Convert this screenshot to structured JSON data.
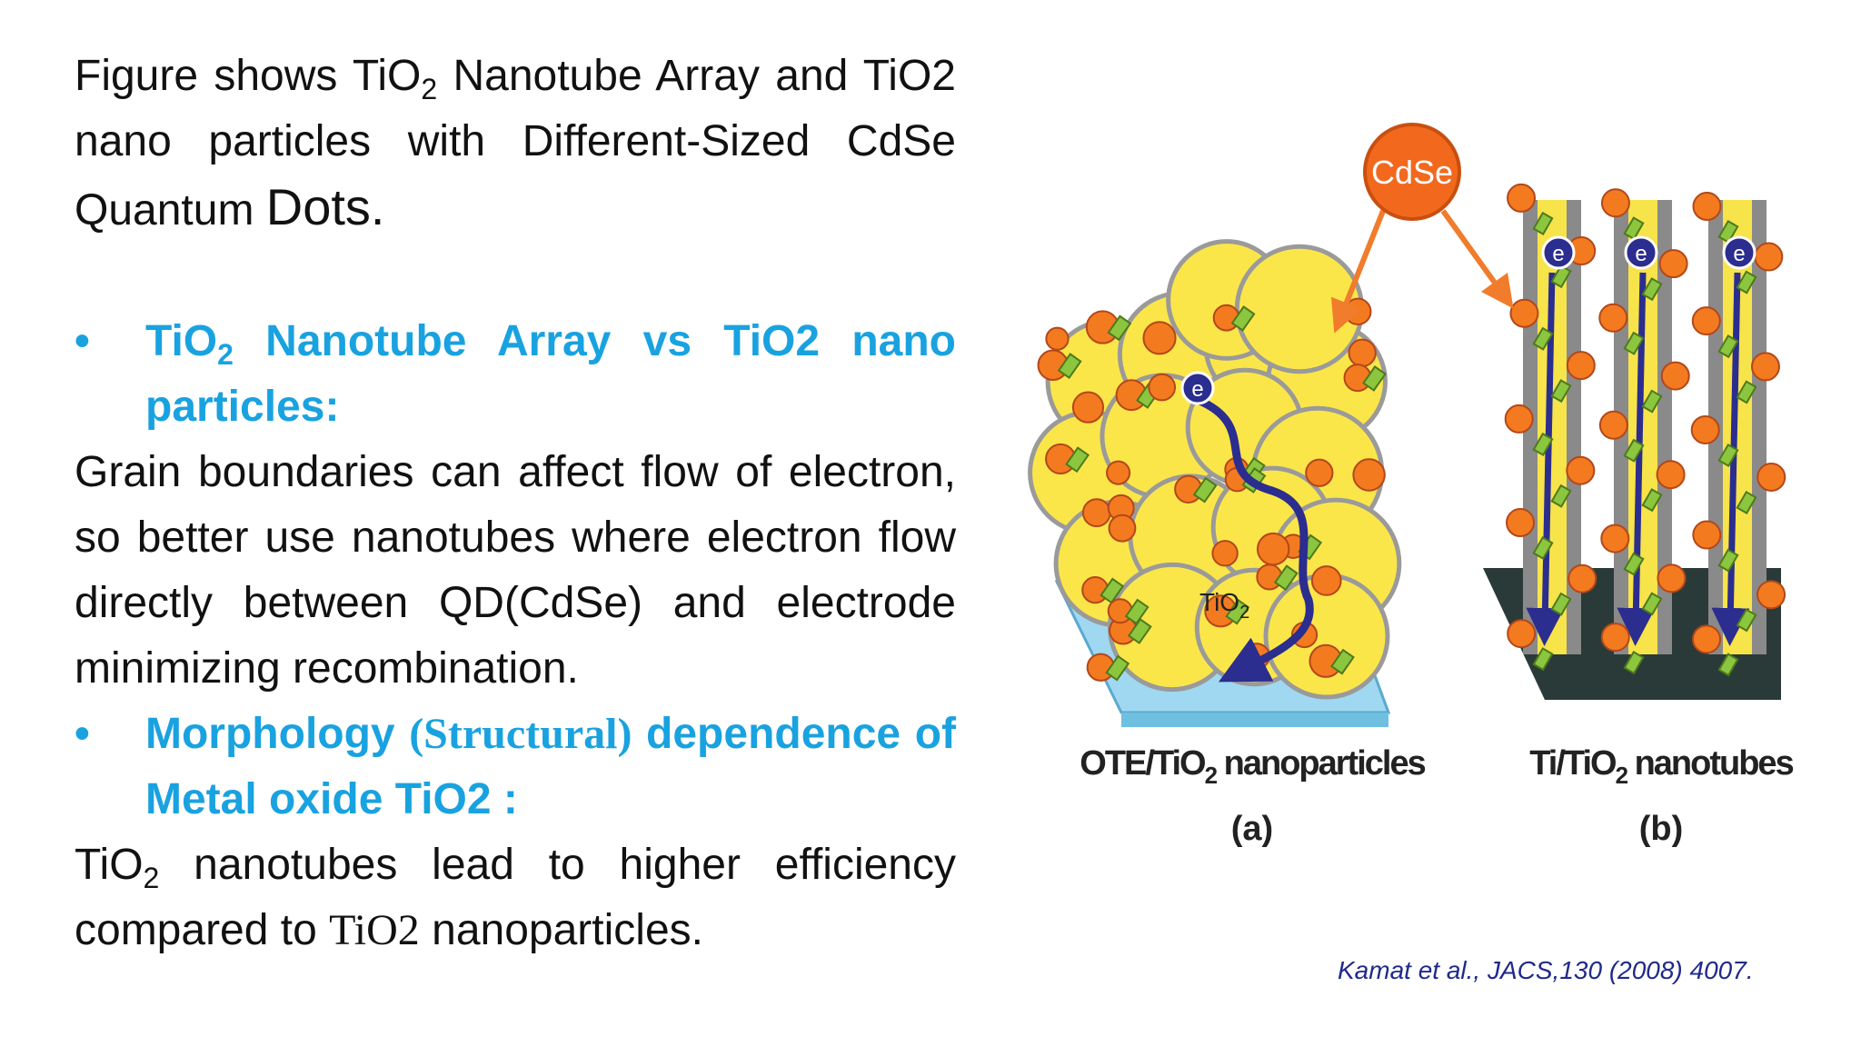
{
  "intro": {
    "runs": [
      "Figure shows TiO",
      "2",
      " Nanotube Array and TiO2 nano particles with Different-Sized CdSe Quantum ",
      "Dots."
    ]
  },
  "bullet_1": {
    "marker": "•",
    "runs": [
      "TiO",
      "2",
      " Nanotube Array vs TiO2 nano particles:"
    ]
  },
  "paragraph_1": "Grain boundaries can affect flow of electron, so better use nanotubes where electron flow directly between QD(CdSe) and electrode minimizing recombination.",
  "bullet_2": {
    "marker": "•",
    "runs": [
      "Morphology ",
      "(Structural)",
      " dependence of Metal oxide TiO2 :"
    ]
  },
  "paragraph_2": {
    "runs": [
      "TiO",
      "2",
      " nanotubes lead to higher efficiency compared to ",
      "TiO2",
      " nanoparticles."
    ]
  },
  "figure": {
    "source_label": "CdSe",
    "electron_labels": [
      "e",
      "e",
      "e",
      "e"
    ],
    "tio2_label": {
      "runs": [
        "TiO",
        "2"
      ]
    },
    "panel_a": {
      "caption_runs": [
        "OTE/TiO",
        "2",
        " nanoparticles"
      ],
      "letter": "(a)"
    },
    "panel_b": {
      "caption_runs": [
        "Ti/TiO",
        "2",
        " nanotubes"
      ],
      "letter": "(b)"
    }
  },
  "citation": "Kamat et al., JACS,130 (2008) 4007."
}
